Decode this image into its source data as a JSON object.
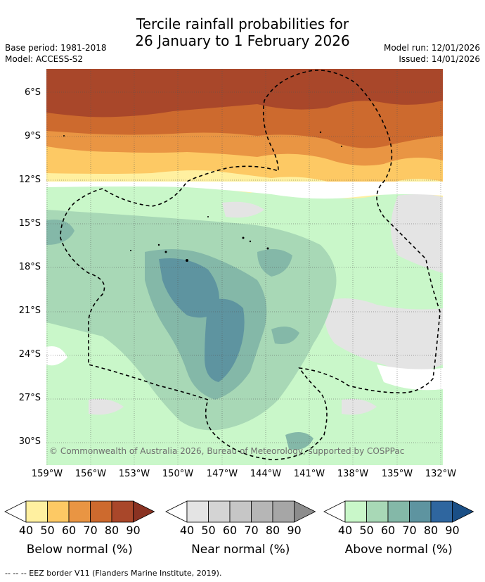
{
  "title_line1": "Tercile rainfall probabilities for",
  "title_line2": "26 January to 1 February 2026",
  "base_period": "Base period: 1981-2018",
  "model": "Model: ACCESS-S2",
  "model_run": "Model run: 12/01/2026",
  "issued": "Issued: 14/01/2026",
  "lat_labels": [
    "6°S",
    "9°S",
    "12°S",
    "15°S",
    "18°S",
    "21°S",
    "24°S",
    "27°S",
    "30°S"
  ],
  "lon_labels": [
    "159°W",
    "156°W",
    "153°W",
    "150°W",
    "147°W",
    "144°W",
    "141°W",
    "138°W",
    "135°W",
    "132°W"
  ],
  "copyright": "© Commonwealth of Australia 2026, Bureau of Meteorology, supported by COSPPac",
  "colorbars": [
    {
      "label": "Below normal (%)",
      "ticks": [
        "40",
        "50",
        "60",
        "70",
        "80",
        "90"
      ],
      "colors": [
        "#fff0a0",
        "#fdc964",
        "#e99543",
        "#cd6a2e",
        "#a9472a",
        "#8a3222"
      ]
    },
    {
      "label": "Near normal (%)",
      "ticks": [
        "40",
        "50",
        "60",
        "70",
        "80",
        "90"
      ],
      "colors": [
        "#e4e4e4",
        "#d4d4d4",
        "#c6c6c6",
        "#b6b6b6",
        "#a6a6a6",
        "#8c8c8c"
      ]
    },
    {
      "label": "Above normal (%)",
      "ticks": [
        "40",
        "50",
        "60",
        "70",
        "80",
        "90"
      ],
      "colors": [
        "#c9f7c9",
        "#a8d8b6",
        "#84b8a8",
        "#5e94a0",
        "#2f669f",
        "#1a4f86"
      ]
    }
  ],
  "footer": "--  --  -- EEZ border V11 (Flanders Marine Institute, 2019)."
}
